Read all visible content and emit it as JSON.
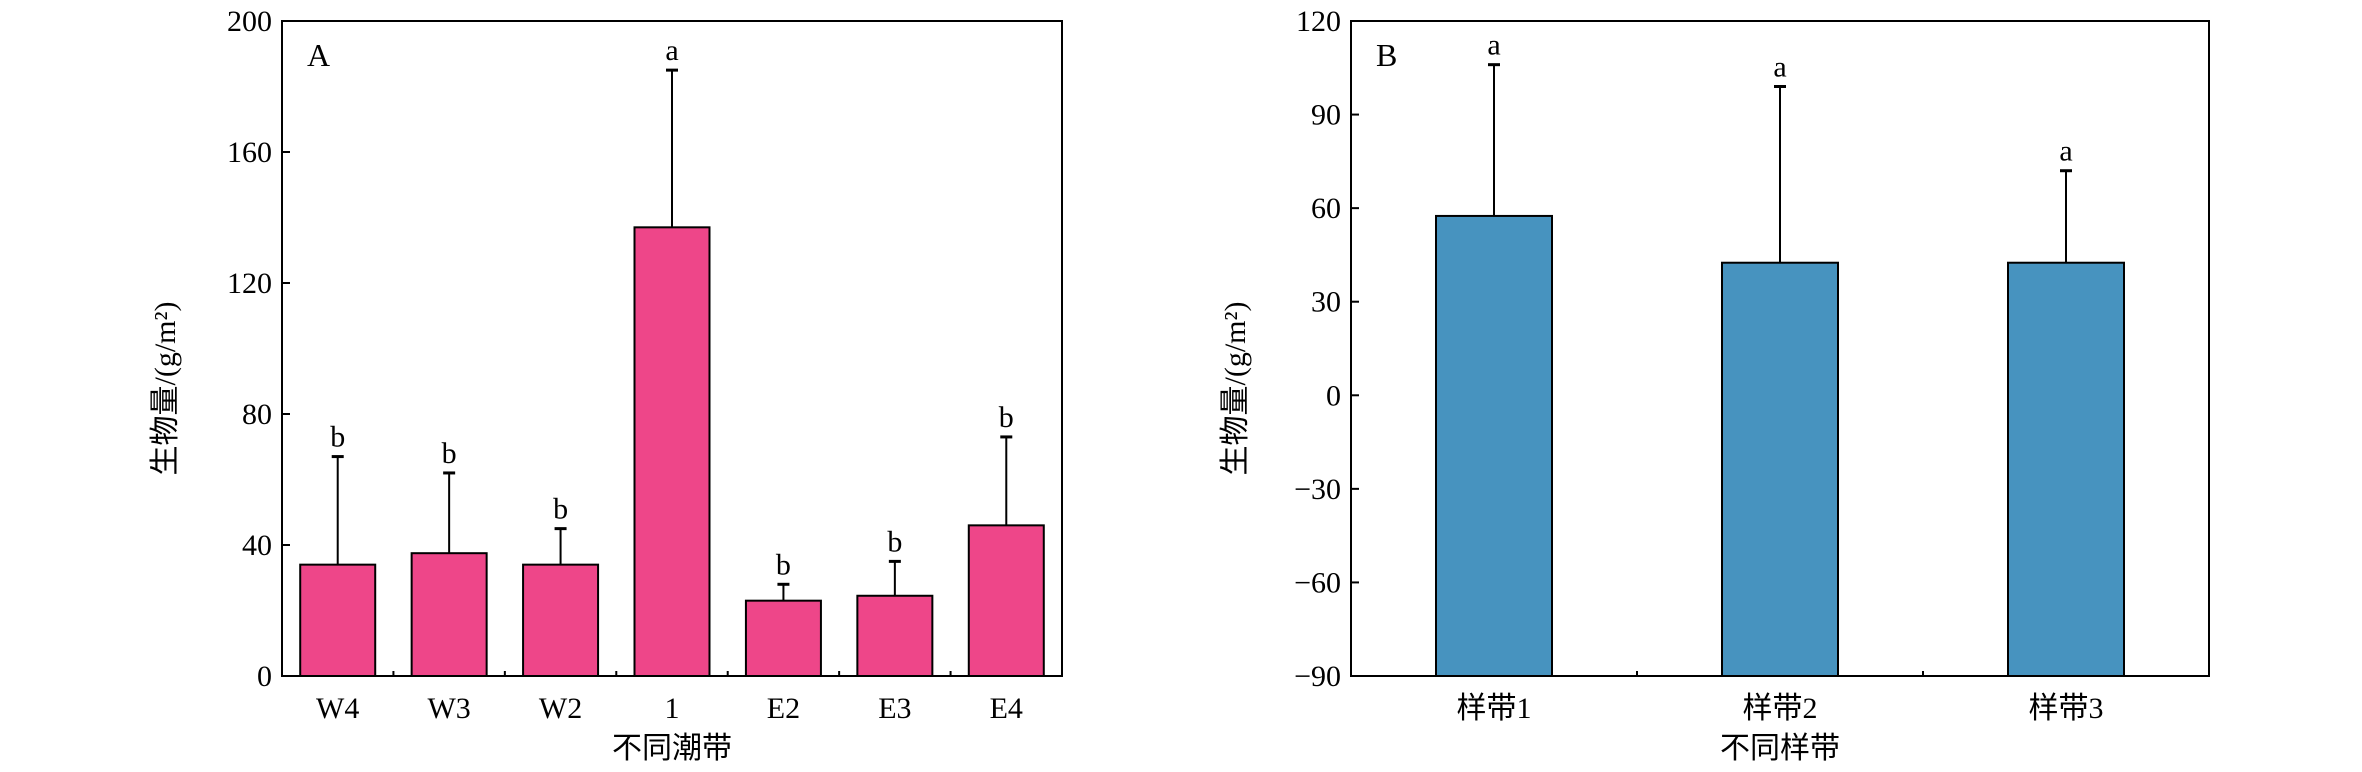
{
  "chart_data": [
    {
      "type": "bar",
      "panel_label": "A",
      "title": "",
      "xlabel": "不同潮带",
      "ylabel": "生物量/(g/m²)",
      "categories": [
        "W4",
        "W3",
        "W2",
        "1",
        "E2",
        "E3",
        "E4"
      ],
      "values": [
        34,
        37.5,
        34,
        137,
        23,
        24.5,
        46
      ],
      "error_upper": [
        67,
        62,
        45,
        185,
        28,
        35,
        73
      ],
      "significance": [
        "b",
        "b",
        "b",
        "a",
        "b",
        "b",
        "b"
      ],
      "ylim": [
        0,
        200
      ],
      "yticks": [
        0,
        40,
        80,
        120,
        160,
        200
      ],
      "bar_color": "#EE4689",
      "grid": false
    },
    {
      "type": "bar",
      "panel_label": "B",
      "title": "",
      "xlabel": "不同样带",
      "ylabel": "生物量/(g/m²)",
      "categories": [
        "样带1",
        "样带2",
        "样带3"
      ],
      "values": [
        57.5,
        42.5,
        42.5
      ],
      "error_upper": [
        106,
        99,
        72
      ],
      "significance": [
        "a",
        "a",
        "a"
      ],
      "ylim": [
        -90,
        120
      ],
      "yticks": [
        -90,
        -60,
        -30,
        0,
        30,
        60,
        90,
        120
      ],
      "bar_color": "#4793BF",
      "grid": false
    }
  ]
}
